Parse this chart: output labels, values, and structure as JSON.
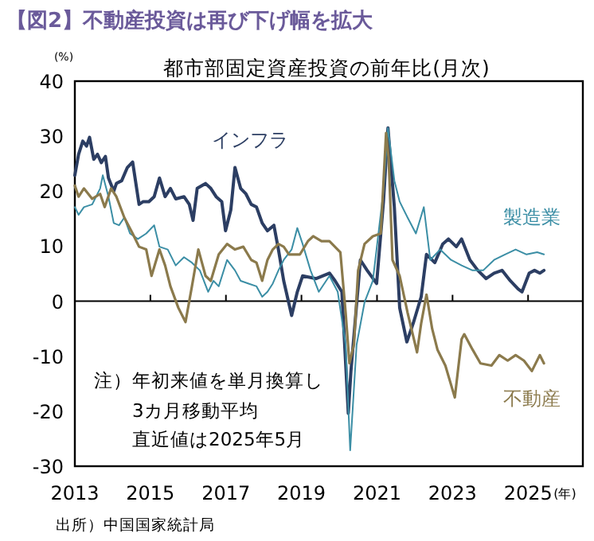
{
  "chart_data": {
    "type": "line",
    "title": "【図2】不動産投資は再び下げ幅を拡大",
    "subtitle": "都市部固定資産投資の前年比(月次)",
    "ylabel": "(%)",
    "xlabel": "(年)",
    "xlim": [
      2013,
      2026.45
    ],
    "xticks": [
      2013,
      2015,
      2017,
      2019,
      2021,
      2023,
      2025
    ],
    "ylim": [
      -30,
      40
    ],
    "yticks": [
      -30,
      -20,
      -10,
      0,
      10,
      20,
      30,
      40
    ],
    "grid": false,
    "marker": "none",
    "line_style": "solid",
    "ref_lines": [
      {
        "axis": "y",
        "value": 0,
        "color": "#000000"
      }
    ],
    "annotations": [
      "注）年初来値を単月換算し",
      "3カ月移動平均",
      "直近値は2025年5月",
      "出所）中国国家統計局"
    ],
    "series": [
      {
        "name": "インフラ",
        "color": "#2c3e63",
        "x": [
          2013.0,
          2013.1,
          2013.21,
          2013.31,
          2013.39,
          2013.5,
          2013.6,
          2013.7,
          2013.81,
          2013.89,
          2014.03,
          2014.1,
          2014.24,
          2014.39,
          2014.53,
          2014.7,
          2014.81,
          2014.96,
          2015.1,
          2015.24,
          2015.39,
          2015.53,
          2015.67,
          2015.89,
          2016.03,
          2016.13,
          2016.24,
          2016.46,
          2016.6,
          2016.74,
          2016.89,
          2016.99,
          2017.13,
          2017.24,
          2017.39,
          2017.53,
          2017.67,
          2017.81,
          2017.96,
          2018.1,
          2018.27,
          2018.39,
          2018.53,
          2018.74,
          2018.89,
          2019.03,
          2019.39,
          2019.74,
          2019.89,
          2020.07,
          2020.24,
          2020.31,
          2020.56,
          2020.74,
          2020.99,
          2021.17,
          2021.29,
          2021.46,
          2021.6,
          2021.79,
          2021.96,
          2022.17,
          2022.31,
          2022.53,
          2022.74,
          2022.89,
          2023.1,
          2023.24,
          2023.46,
          2023.67,
          2023.89,
          2024.1,
          2024.31,
          2024.53,
          2024.74,
          2024.84,
          2025.03,
          2025.17,
          2025.31,
          2025.42
        ],
        "values": [
          22.9,
          26.7,
          29.1,
          28.2,
          29.8,
          25.8,
          26.7,
          25.2,
          26.3,
          22.4,
          20.0,
          21.4,
          21.9,
          24.3,
          25.3,
          17.6,
          18.1,
          18.1,
          19.0,
          22.4,
          19.0,
          20.5,
          18.6,
          19.0,
          17.6,
          14.7,
          20.5,
          21.4,
          20.5,
          19.0,
          18.1,
          12.8,
          16.6,
          24.3,
          20.5,
          19.5,
          17.6,
          17.1,
          14.2,
          12.8,
          13.8,
          9.4,
          3.7,
          -2.6,
          1.7,
          4.6,
          4.1,
          5.1,
          3.7,
          1.7,
          -20.4,
          -12.7,
          7.5,
          5.6,
          3.2,
          18.0,
          31.5,
          17.0,
          -1.2,
          -7.4,
          -4.0,
          0.8,
          8.5,
          7.0,
          10.4,
          11.3,
          9.9,
          11.3,
          7.5,
          5.6,
          4.1,
          5.1,
          5.6,
          3.7,
          2.2,
          1.7,
          5.1,
          5.6,
          5.1,
          5.6
        ]
      },
      {
        "name": "製造業",
        "color": "#3b8ea5",
        "x": [
          2013.0,
          2013.1,
          2013.24,
          2013.46,
          2013.67,
          2013.74,
          2013.89,
          2014.03,
          2014.17,
          2014.31,
          2014.46,
          2014.67,
          2014.89,
          2015.1,
          2015.24,
          2015.46,
          2015.67,
          2015.89,
          2016.1,
          2016.31,
          2016.53,
          2016.67,
          2016.81,
          2017.03,
          2017.24,
          2017.39,
          2017.6,
          2017.81,
          2017.96,
          2018.1,
          2018.24,
          2018.39,
          2018.53,
          2018.74,
          2018.89,
          2019.03,
          2019.24,
          2019.46,
          2019.74,
          2019.96,
          2020.17,
          2020.29,
          2020.46,
          2020.67,
          2020.89,
          2021.17,
          2021.29,
          2021.46,
          2021.6,
          2021.81,
          2022.03,
          2022.24,
          2022.41,
          2022.67,
          2022.96,
          2023.24,
          2023.53,
          2023.81,
          2024.1,
          2024.39,
          2024.67,
          2024.96,
          2025.24,
          2025.42
        ],
        "values": [
          17.1,
          15.7,
          17.1,
          17.6,
          20.5,
          22.9,
          19.0,
          14.2,
          13.8,
          15.2,
          12.3,
          11.3,
          12.3,
          13.8,
          9.9,
          9.4,
          6.5,
          8.0,
          7.0,
          5.6,
          1.7,
          3.7,
          2.7,
          7.5,
          5.6,
          3.7,
          3.2,
          2.7,
          0.8,
          1.7,
          3.2,
          5.6,
          7.5,
          9.4,
          13.3,
          10.4,
          5.6,
          1.7,
          4.6,
          1.7,
          -7.9,
          -27.1,
          -7.9,
          -0.2,
          3.7,
          20.0,
          31.5,
          21.9,
          18.1,
          15.2,
          12.3,
          17.1,
          7.5,
          9.4,
          7.5,
          6.5,
          5.6,
          5.6,
          7.5,
          8.5,
          9.4,
          8.5,
          8.9,
          8.5
        ]
      },
      {
        "name": "不動産",
        "color": "#8b7a4c",
        "x": [
          2013.0,
          2013.1,
          2013.24,
          2013.46,
          2013.67,
          2013.79,
          2013.96,
          2014.1,
          2014.31,
          2014.53,
          2014.7,
          2014.89,
          2015.03,
          2015.24,
          2015.39,
          2015.53,
          2015.74,
          2015.93,
          2016.1,
          2016.27,
          2016.46,
          2016.6,
          2016.81,
          2017.03,
          2017.24,
          2017.46,
          2017.67,
          2017.81,
          2017.96,
          2018.1,
          2018.24,
          2018.39,
          2018.53,
          2018.67,
          2018.96,
          2019.17,
          2019.31,
          2019.53,
          2019.74,
          2020.03,
          2020.17,
          2020.27,
          2020.39,
          2020.5,
          2020.67,
          2020.89,
          2021.1,
          2021.24,
          2021.31,
          2021.41,
          2021.6,
          2021.81,
          2022.06,
          2022.17,
          2022.31,
          2022.46,
          2022.6,
          2022.81,
          2023.06,
          2023.24,
          2023.31,
          2023.53,
          2023.74,
          2024.03,
          2024.24,
          2024.46,
          2024.67,
          2024.89,
          2025.1,
          2025.31,
          2025.42
        ],
        "values": [
          21.0,
          19.0,
          20.5,
          18.6,
          19.5,
          17.1,
          20.5,
          19.0,
          15.2,
          12.3,
          9.9,
          9.4,
          4.6,
          9.4,
          6.5,
          2.7,
          -1.2,
          -3.8,
          2.7,
          9.4,
          4.6,
          3.7,
          8.5,
          10.4,
          9.4,
          9.9,
          7.5,
          7.0,
          3.7,
          7.5,
          9.4,
          10.4,
          9.9,
          8.5,
          8.5,
          10.9,
          11.8,
          10.9,
          10.9,
          8.9,
          -2.1,
          -11.3,
          -7.9,
          5.6,
          10.4,
          11.8,
          12.3,
          30.6,
          25.8,
          7.5,
          4.6,
          -2.1,
          -9.3,
          -4.0,
          1.2,
          -5.0,
          -8.8,
          -11.7,
          -17.5,
          -6.9,
          -6.0,
          -8.8,
          -11.3,
          -11.7,
          -9.8,
          -10.8,
          -9.8,
          -10.8,
          -12.7,
          -9.8,
          -11.3
        ]
      }
    ]
  }
}
